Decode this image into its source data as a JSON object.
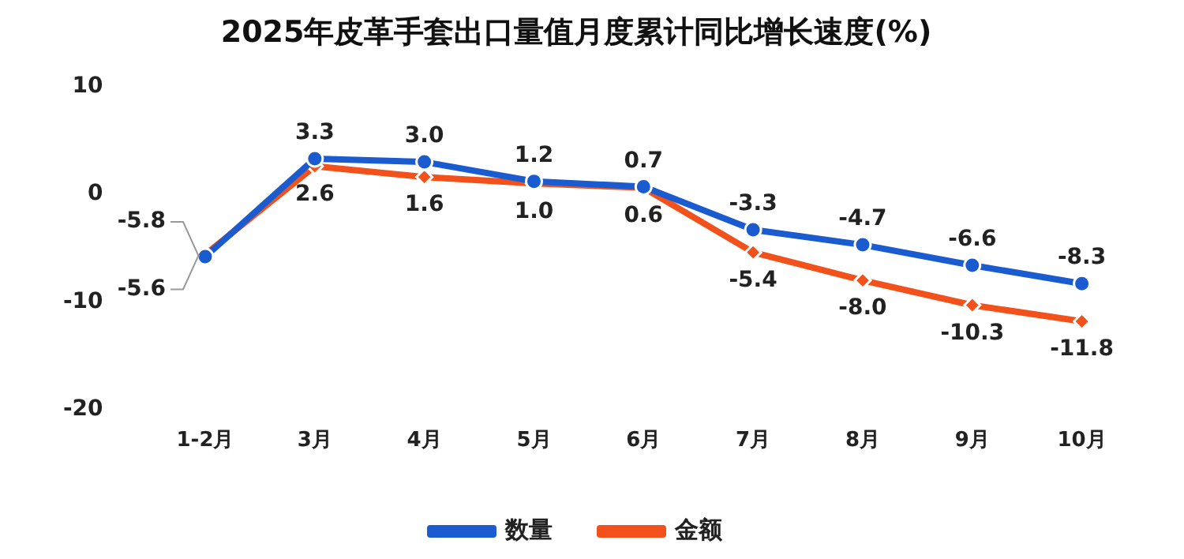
{
  "chart_data": {
    "type": "line",
    "title": "2025年皮革手套出口量值月度累计同比增长速度(%)",
    "categories": [
      "1-2月",
      "3月",
      "4月",
      "5月",
      "6月",
      "7月",
      "8月",
      "9月",
      "10月"
    ],
    "series": [
      {
        "name": "数量",
        "color": "#1a5cd0",
        "marker": "circle",
        "values": [
          -5.8,
          3.3,
          3.0,
          1.2,
          0.7,
          -3.3,
          -4.7,
          -6.6,
          -8.3
        ],
        "value_labels": [
          "-5.8",
          "3.3",
          "3.0",
          "1.2",
          "0.7",
          "-3.3",
          "-4.7",
          "-6.6",
          "-8.3"
        ]
      },
      {
        "name": "金额",
        "color": "#f2511b",
        "marker": "diamond",
        "values": [
          -5.6,
          2.6,
          1.6,
          1.0,
          0.6,
          -5.4,
          -8.0,
          -10.3,
          -11.8
        ],
        "value_labels": [
          "-5.6",
          "2.6",
          "1.6",
          "1.0",
          "0.6",
          "-5.4",
          "-8.0",
          "-10.3",
          "-11.8"
        ]
      }
    ],
    "ylim": [
      -20,
      10
    ],
    "yticks": [
      -20,
      -10,
      0,
      10
    ],
    "grid": false,
    "legend": "bottom"
  }
}
